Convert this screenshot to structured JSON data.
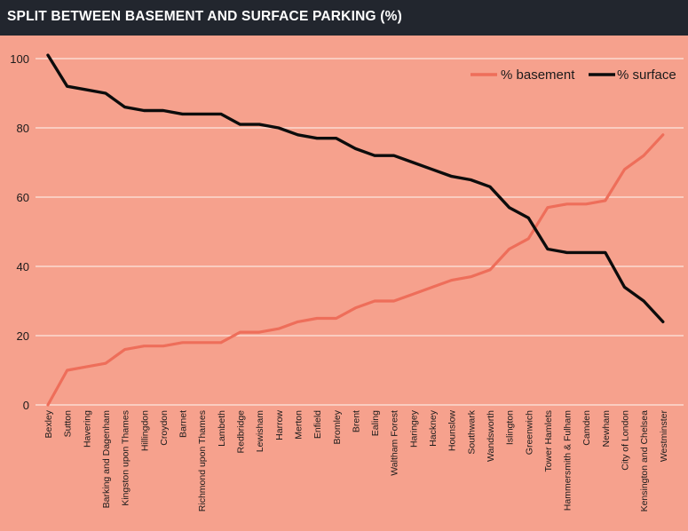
{
  "header": {
    "title": "SPLIT BETWEEN BASEMENT AND SURFACE PARKING (%)"
  },
  "colors": {
    "background": "#f6a18d",
    "header": "#22262e",
    "basement": "#ee6e5a",
    "surface": "#0c0c0c",
    "grid": "#fde6de"
  },
  "chart_data": {
    "type": "line",
    "title": "SPLIT BETWEEN BASEMENT AND SURFACE PARKING (%)",
    "ylim": [
      0,
      100
    ],
    "yticks": [
      0,
      20,
      40,
      60,
      80,
      100
    ],
    "grid": "horizontal",
    "legend_position": "top-right",
    "categories": [
      "Bexley",
      "Sutton",
      "Havering",
      "Barking and Dagenham",
      "Kingston upon Thames",
      "Hillingdon",
      "Croydon",
      "Barnet",
      "Richmond upon Thames",
      "Lambeth",
      "Redbridge",
      "Lewisham",
      "Harrow",
      "Merton",
      "Enfield",
      "Bromley",
      "Brent",
      "Ealing",
      "Waltham Forest",
      "Haringey",
      "Hackney",
      "Hounslow",
      "Southwark",
      "Wandsworth",
      "Islington",
      "Greenwich",
      "Tower Hamlets",
      "Hammersmith & Fulham",
      "Camden",
      "Newham",
      "City of London",
      "Kensington and Chelsea",
      "Westminster"
    ],
    "series": [
      {
        "name": "% basement",
        "color": "#ee6e5a",
        "values": [
          0,
          10,
          11,
          12,
          16,
          17,
          17,
          18,
          18,
          18,
          21,
          21,
          22,
          24,
          25,
          25,
          28,
          30,
          30,
          32,
          34,
          36,
          37,
          39,
          45,
          48,
          57,
          58,
          58,
          59,
          68,
          72,
          78
        ]
      },
      {
        "name": "% surface",
        "color": "#0c0c0c",
        "values": [
          101,
          92,
          91,
          90,
          86,
          85,
          85,
          84,
          84,
          84,
          81,
          81,
          80,
          78,
          77,
          77,
          74,
          72,
          72,
          70,
          68,
          66,
          65,
          63,
          57,
          54,
          45,
          44,
          44,
          44,
          34,
          30,
          24
        ]
      }
    ]
  }
}
